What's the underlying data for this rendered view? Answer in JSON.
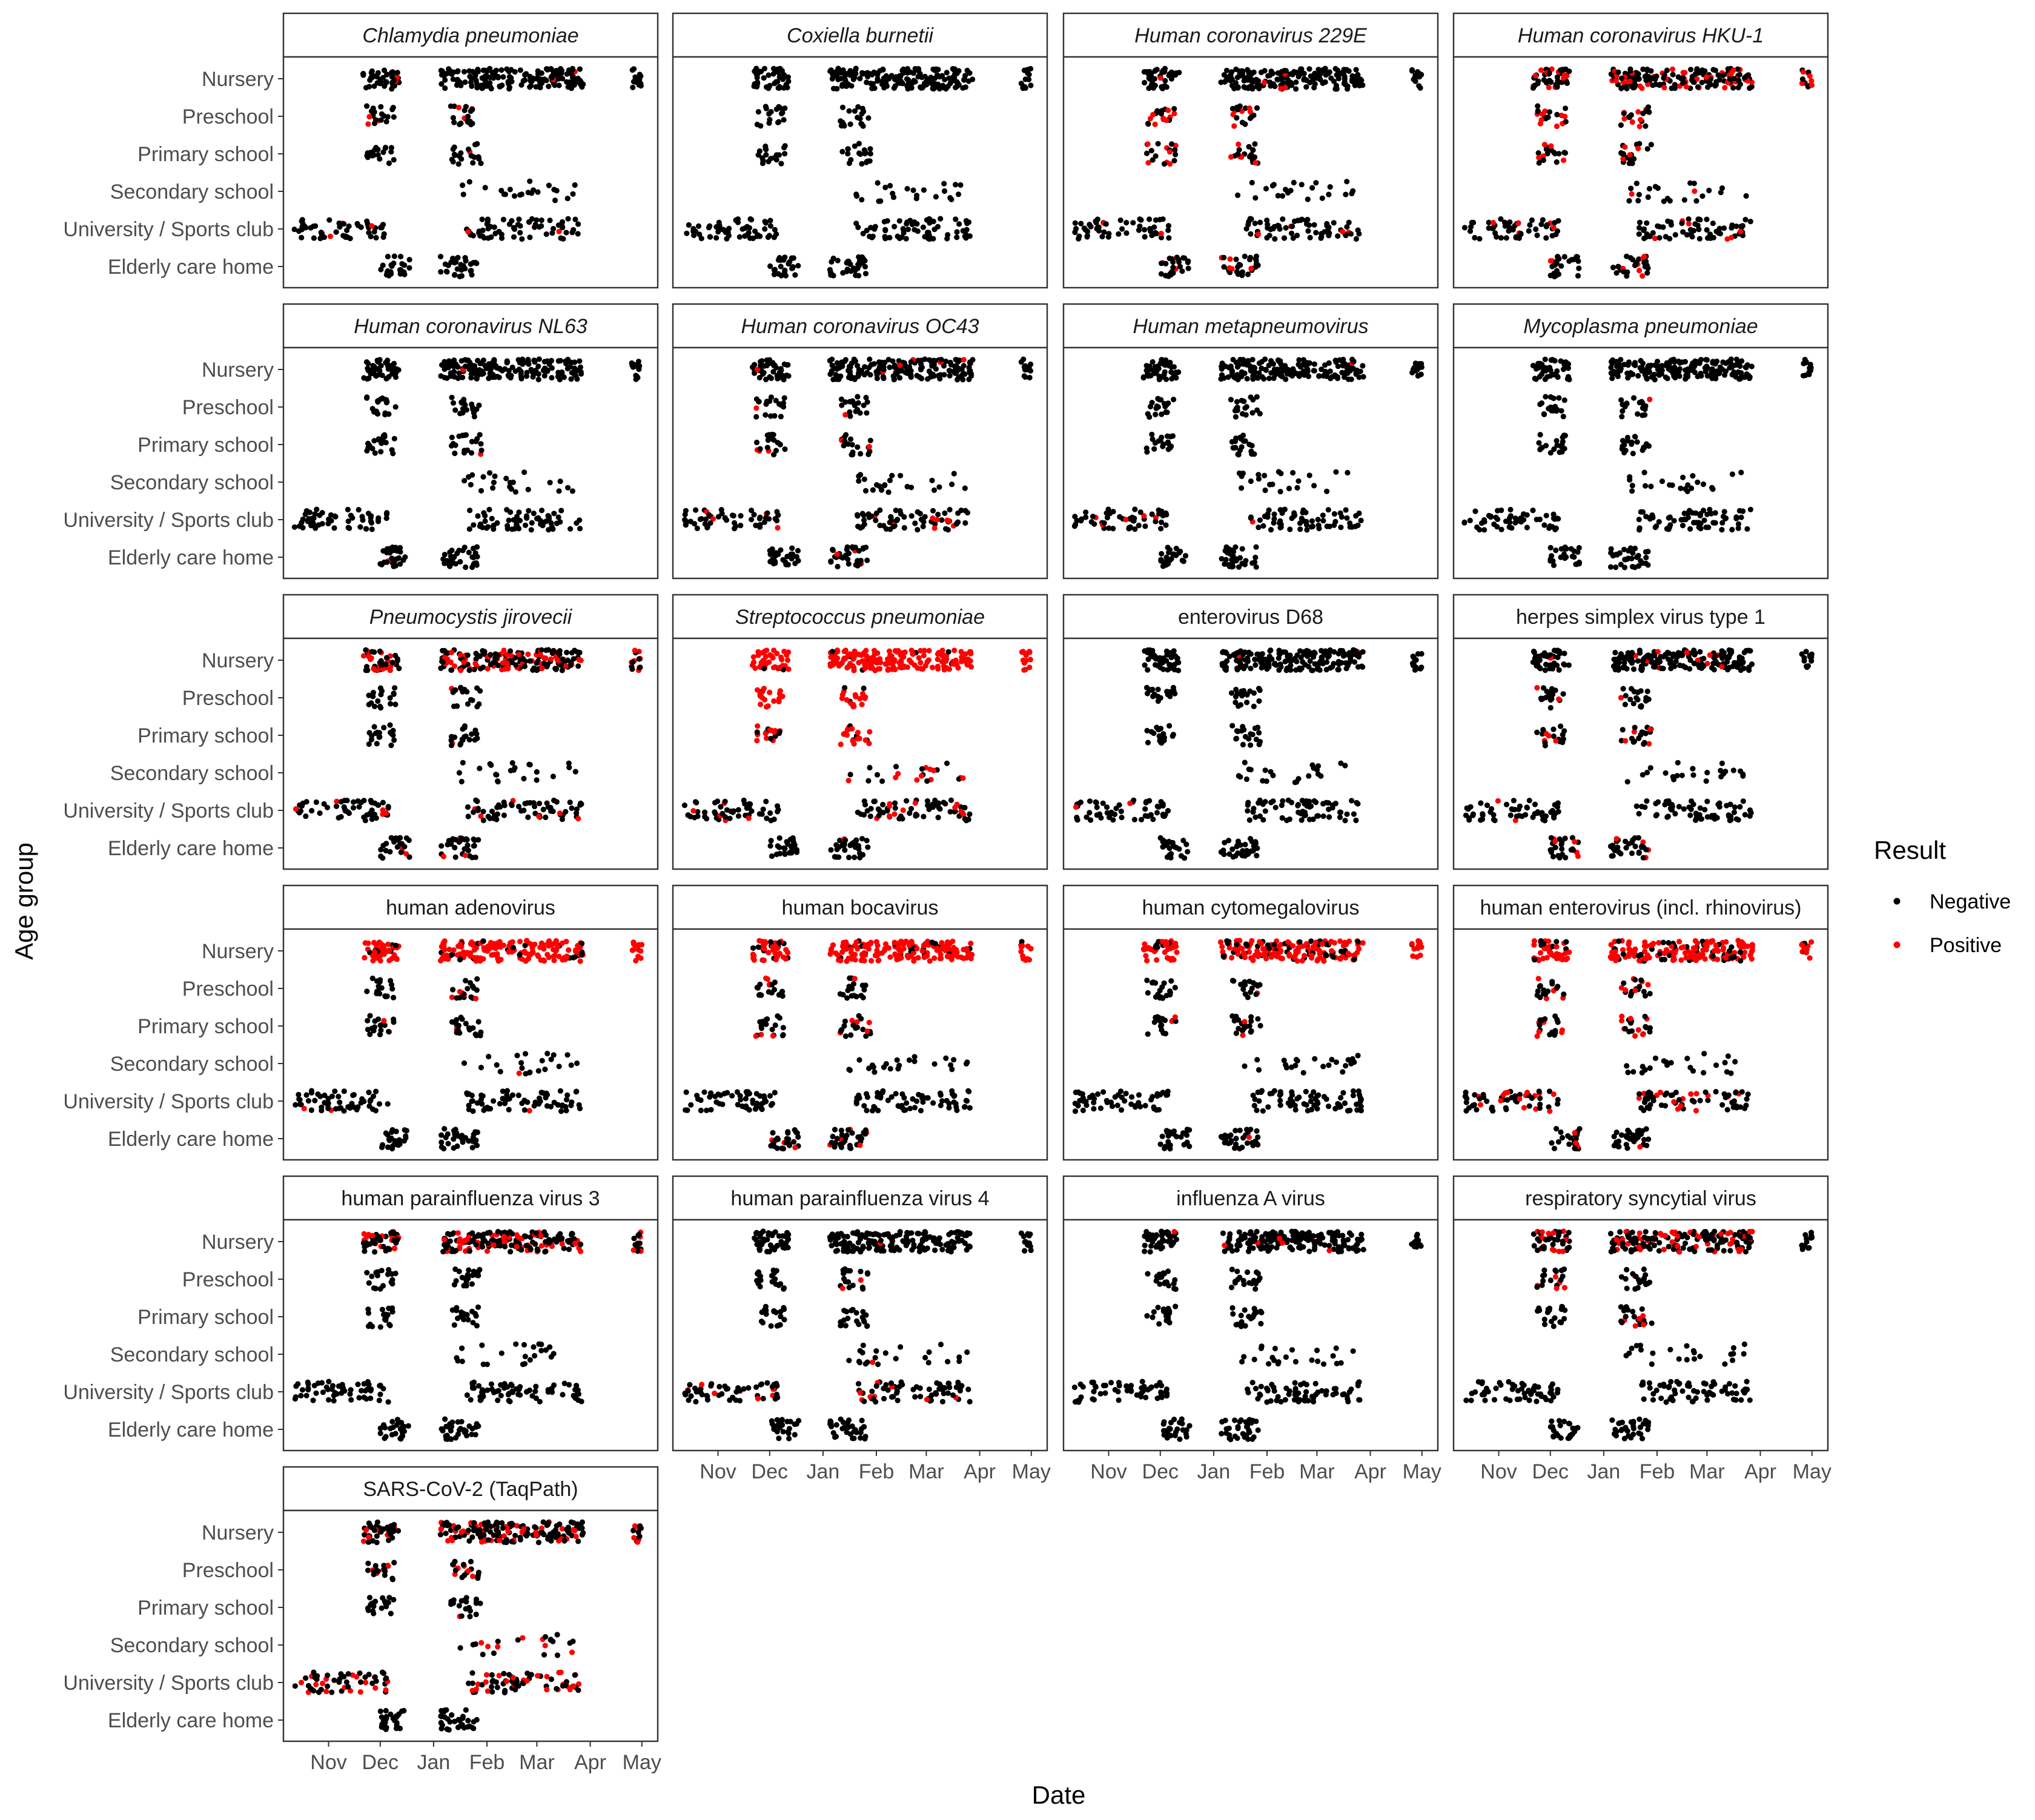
{
  "chart_data": {
    "type": "scatter",
    "x_axis_title": "Date",
    "y_axis_title": "Age group",
    "x_ticks": [
      "Nov",
      "Dec",
      "Jan",
      "Feb",
      "Mar",
      "Apr",
      "May"
    ],
    "x_range": [
      "2023-10-10",
      "2024-05-06"
    ],
    "y_categories": [
      "Nursery",
      "Preschool",
      "Primary school",
      "Secondary school",
      "University / Sports club",
      "Elderly care home"
    ],
    "legend": {
      "title": "Result",
      "entries": [
        "Negative",
        "Positive"
      ],
      "colors": [
        "#000000",
        "#ff0000"
      ],
      "placement": "right"
    },
    "sampling_windows": {
      "Nursery": [
        [
          "2023-11-21",
          "2023-12-12"
        ],
        [
          "2024-01-05",
          "2024-03-28"
        ],
        [
          "2024-04-25",
          "2024-05-01"
        ]
      ],
      "Preschool": [
        [
          "2023-11-23",
          "2023-12-10"
        ],
        [
          "2024-01-11",
          "2024-01-28"
        ]
      ],
      "Primary school": [
        [
          "2023-11-23",
          "2023-12-10"
        ],
        [
          "2024-01-11",
          "2024-01-29"
        ]
      ],
      "Secondary school": [
        [
          "2024-01-14",
          "2024-03-25"
        ]
      ],
      "University / Sports club": [
        [
          "2023-10-12",
          "2023-12-06"
        ],
        [
          "2024-01-20",
          "2024-03-27"
        ]
      ],
      "Elderly care home": [
        [
          "2023-12-01",
          "2023-12-18"
        ],
        [
          "2024-01-05",
          "2024-01-27"
        ]
      ]
    },
    "panels": [
      {
        "title": "Chlamydia pneumoniae",
        "italic": true,
        "positive_share": {
          "Nursery": 0.03,
          "Preschool": 0.05,
          "Primary school": 0.03,
          "Secondary school": 0.0,
          "University / Sports club": 0.04,
          "Elderly care home": 0.0
        }
      },
      {
        "title": "Coxiella burnetii",
        "italic": true,
        "positive_share": {
          "Nursery": 0.0,
          "Preschool": 0.0,
          "Primary school": 0.0,
          "Secondary school": 0.0,
          "University / Sports club": 0.0,
          "Elderly care home": 0.0
        }
      },
      {
        "title": "Human coronavirus 229E",
        "italic": true,
        "positive_share": {
          "Nursery": 0.05,
          "Preschool": 0.25,
          "Primary school": 0.35,
          "Secondary school": 0.0,
          "University / Sports club": 0.06,
          "Elderly care home": 0.15
        }
      },
      {
        "title": "Human coronavirus HKU-1",
        "italic": true,
        "positive_share": {
          "Nursery": 0.3,
          "Preschool": 0.35,
          "Primary school": 0.25,
          "Secondary school": 0.04,
          "University / Sports club": 0.1,
          "Elderly care home": 0.15
        }
      },
      {
        "title": "Human coronavirus NL63",
        "italic": true,
        "positive_share": {
          "Nursery": 0.01,
          "Preschool": 0.05,
          "Primary school": 0.03,
          "Secondary school": 0.0,
          "University / Sports club": 0.0,
          "Elderly care home": 0.03
        }
      },
      {
        "title": "Human coronavirus OC43",
        "italic": true,
        "positive_share": {
          "Nursery": 0.04,
          "Preschool": 0.06,
          "Primary school": 0.03,
          "Secondary school": 0.0,
          "University / Sports club": 0.12,
          "Elderly care home": 0.03
        }
      },
      {
        "title": "Human metapneumovirus",
        "italic": true,
        "positive_share": {
          "Nursery": 0.01,
          "Preschool": 0.0,
          "Primary school": 0.0,
          "Secondary school": 0.0,
          "University / Sports club": 0.05,
          "Elderly care home": 0.0
        }
      },
      {
        "title": "Mycoplasma pneumoniae",
        "italic": true,
        "positive_share": {
          "Nursery": 0.0,
          "Preschool": 0.02,
          "Primary school": 0.02,
          "Secondary school": 0.0,
          "University / Sports club": 0.0,
          "Elderly care home": 0.0
        }
      },
      {
        "title": "Pneumocystis jirovecii",
        "italic": true,
        "positive_share": {
          "Nursery": 0.35,
          "Preschool": 0.03,
          "Primary school": 0.05,
          "Secondary school": 0.0,
          "University / Sports club": 0.12,
          "Elderly care home": 0.12
        }
      },
      {
        "title": "Streptococcus pneumoniae",
        "italic": true,
        "positive_share": {
          "Nursery": 0.97,
          "Preschool": 0.9,
          "Primary school": 0.6,
          "Secondary school": 0.35,
          "University / Sports club": 0.1,
          "Elderly care home": 0.05
        }
      },
      {
        "title": "enterovirus D68",
        "italic": false,
        "positive_share": {
          "Nursery": 0.02,
          "Preschool": 0.02,
          "Primary school": 0.0,
          "Secondary school": 0.0,
          "University / Sports club": 0.02,
          "Elderly care home": 0.0
        }
      },
      {
        "title": "herpes simplex virus type 1",
        "italic": false,
        "positive_share": {
          "Nursery": 0.05,
          "Preschool": 0.1,
          "Primary school": 0.2,
          "Secondary school": 0.05,
          "University / Sports club": 0.05,
          "Elderly care home": 0.15
        }
      },
      {
        "title": "human adenovirus",
        "italic": false,
        "positive_share": {
          "Nursery": 0.9,
          "Preschool": 0.06,
          "Primary school": 0.04,
          "Secondary school": 0.02,
          "University / Sports club": 0.02,
          "Elderly care home": 0.0
        }
      },
      {
        "title": "human bocavirus",
        "italic": false,
        "positive_share": {
          "Nursery": 0.85,
          "Preschool": 0.15,
          "Primary school": 0.15,
          "Secondary school": 0.0,
          "University / Sports club": 0.0,
          "Elderly care home": 0.12
        }
      },
      {
        "title": "human cytomegalovirus",
        "italic": false,
        "positive_share": {
          "Nursery": 0.75,
          "Preschool": 0.12,
          "Primary school": 0.05,
          "Secondary school": 0.02,
          "University / Sports club": 0.0,
          "Elderly care home": 0.02
        }
      },
      {
        "title": "human enterovirus (incl. rhinovirus)",
        "italic": false,
        "positive_share": {
          "Nursery": 0.8,
          "Preschool": 0.4,
          "Primary school": 0.4,
          "Secondary school": 0.08,
          "University / Sports club": 0.25,
          "Elderly care home": 0.06
        }
      },
      {
        "title": "human parainfluenza virus 3",
        "italic": false,
        "positive_share": {
          "Nursery": 0.3,
          "Preschool": 0.0,
          "Primary school": 0.0,
          "Secondary school": 0.03,
          "University / Sports club": 0.0,
          "Elderly care home": 0.0
        }
      },
      {
        "title": "human parainfluenza virus 4",
        "italic": false,
        "positive_share": {
          "Nursery": 0.01,
          "Preschool": 0.05,
          "Primary school": 0.0,
          "Secondary school": 0.03,
          "University / Sports club": 0.12,
          "Elderly care home": 0.0
        }
      },
      {
        "title": "influenza A virus",
        "italic": false,
        "positive_share": {
          "Nursery": 0.03,
          "Preschool": 0.0,
          "Primary school": 0.0,
          "Secondary school": 0.0,
          "University / Sports club": 0.0,
          "Elderly care home": 0.0
        }
      },
      {
        "title": "respiratory syncytial virus",
        "italic": false,
        "positive_share": {
          "Nursery": 0.3,
          "Preschool": 0.1,
          "Primary school": 0.05,
          "Secondary school": 0.0,
          "University / Sports club": 0.0,
          "Elderly care home": 0.0
        }
      },
      {
        "title": "SARS-CoV-2 (TaqPath)",
        "italic": false,
        "positive_share": {
          "Nursery": 0.25,
          "Preschool": 0.35,
          "Primary school": 0.08,
          "Secondary school": 0.25,
          "University / Sports club": 0.35,
          "Elderly care home": 0.02
        }
      }
    ]
  }
}
